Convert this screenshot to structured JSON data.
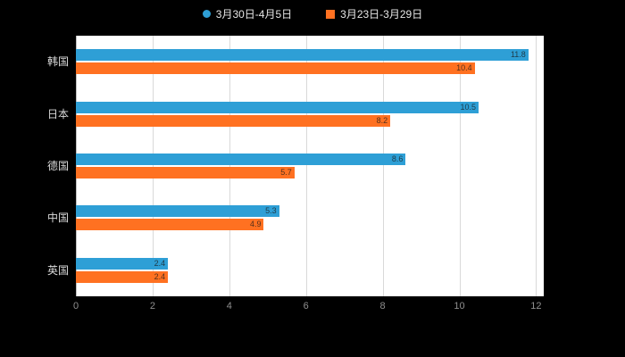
{
  "page": {
    "background": "#000000",
    "plot_background": "#ffffff"
  },
  "legend": {
    "items": [
      {
        "label": "3月30日-4月5日",
        "color": "#2E9FD6",
        "shape": "circle"
      },
      {
        "label": "3月23日-3月29日",
        "color": "#FF7121",
        "shape": "square"
      }
    ]
  },
  "chart_data": {
    "type": "bar",
    "orientation": "horizontal",
    "title": "",
    "categories": [
      "韩国",
      "日本",
      "德国",
      "中国",
      "英国"
    ],
    "series": [
      {
        "name": "3月30日-4月5日",
        "color": "#2E9FD6",
        "values": [
          11.8,
          10.5,
          8.6,
          5.3,
          2.4
        ],
        "labels": [
          "11.8",
          "10.5",
          "8.6",
          "5.3",
          "2.4"
        ]
      },
      {
        "name": "3月23日-3月29日",
        "color": "#FF7121",
        "values": [
          10.4,
          8.2,
          5.7,
          4.9,
          2.4
        ],
        "labels": [
          "10.4",
          "8.2",
          "5.7",
          "4.9",
          "2.4"
        ]
      }
    ],
    "xlim": [
      0,
      12.2
    ],
    "xticks": [
      0,
      2,
      4,
      6,
      8,
      10,
      12
    ],
    "grid": true,
    "legend_position": "top",
    "axis_text_color": "#8f8f8f",
    "category_text_color": "#d9d9d9",
    "gridline_color": "#d9d9d9"
  }
}
